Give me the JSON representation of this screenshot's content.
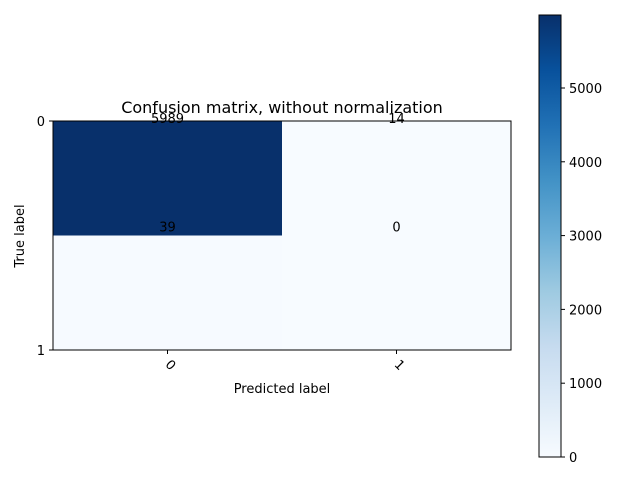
{
  "chart_data": {
    "type": "heatmap",
    "title": "Confusion matrix, without normalization",
    "xlabel": "Predicted label",
    "ylabel": "True label",
    "x_categories": [
      "0",
      "1"
    ],
    "y_categories": [
      "0",
      "1"
    ],
    "y_axis_ticks": [
      "0",
      "1"
    ],
    "values": [
      [
        5989,
        14
      ],
      [
        39,
        0
      ]
    ],
    "cell_labels": [
      [
        "5989",
        "14"
      ],
      [
        "39",
        "0"
      ]
    ],
    "colormap": "Blues",
    "colorbar": {
      "min": 0,
      "max": 5989,
      "ticks": [
        0,
        1000,
        2000,
        3000,
        4000,
        5000
      ],
      "tick_labels": [
        "0",
        "1000",
        "2000",
        "3000",
        "4000",
        "5000"
      ]
    },
    "grid": false
  }
}
